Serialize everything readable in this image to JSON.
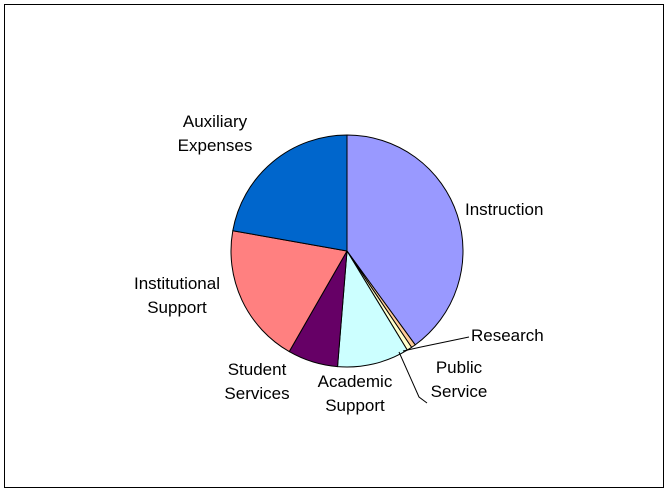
{
  "chart_data": {
    "type": "pie",
    "title": "",
    "slices": [
      {
        "label_lines": [
          "Instruction"
        ],
        "value": 40.0,
        "color": "#9999ff"
      },
      {
        "label_lines": [
          "Research"
        ],
        "value": 0.6,
        "color": "#ffcc99"
      },
      {
        "label_lines": [
          "Public",
          "Service"
        ],
        "value": 0.7,
        "color": "#ffffcc"
      },
      {
        "label_lines": [
          "Academic",
          "Support"
        ],
        "value": 10.0,
        "color": "#ccffff"
      },
      {
        "label_lines": [
          "Student",
          "Services"
        ],
        "value": 7.0,
        "color": "#660066"
      },
      {
        "label_lines": [
          "Institutional",
          "Support"
        ],
        "value": 19.5,
        "color": "#ff8080"
      },
      {
        "label_lines": [
          "Auxiliary",
          "Expenses"
        ],
        "value": 22.2,
        "color": "#0066cc"
      }
    ],
    "start_angle_deg": 0,
    "direction": "clockwise",
    "border_color": "#000000",
    "legend": "none"
  }
}
